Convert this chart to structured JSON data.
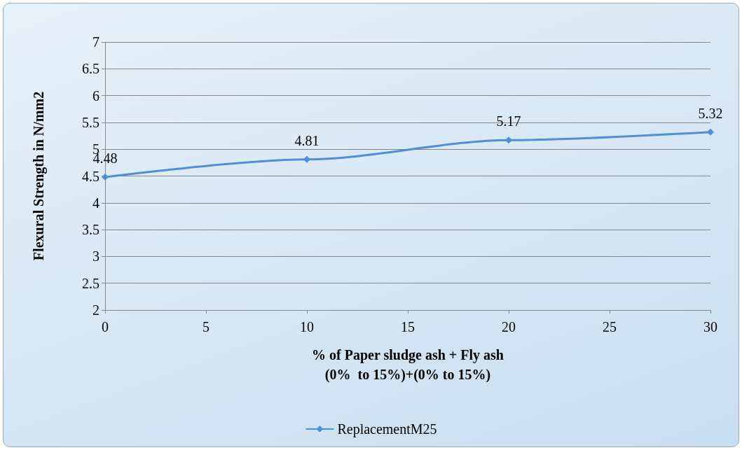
{
  "chart_data": {
    "type": "line",
    "xlabel": "% of Paper sludge ash + Fly ash\n(0%  to 15%)+(0% to 15%)",
    "ylabel": "Flexural Strength in N/mm2",
    "x": [
      0,
      10,
      20,
      30
    ],
    "series": [
      {
        "name": "ReplacementM25",
        "color": "#4f8fd6",
        "values": [
          4.48,
          4.81,
          5.17,
          5.32
        ]
      }
    ],
    "xlim": [
      0,
      30
    ],
    "xticks": [
      0,
      5,
      10,
      15,
      20,
      25,
      30
    ],
    "ylim": [
      2,
      7
    ],
    "yticks": [
      2,
      2.5,
      3,
      3.5,
      4,
      4.5,
      5,
      5.5,
      6,
      6.5,
      7
    ],
    "grid": "y",
    "legend": "bottom",
    "marker": "diamond",
    "line_style": "solid",
    "data_labels": true
  }
}
